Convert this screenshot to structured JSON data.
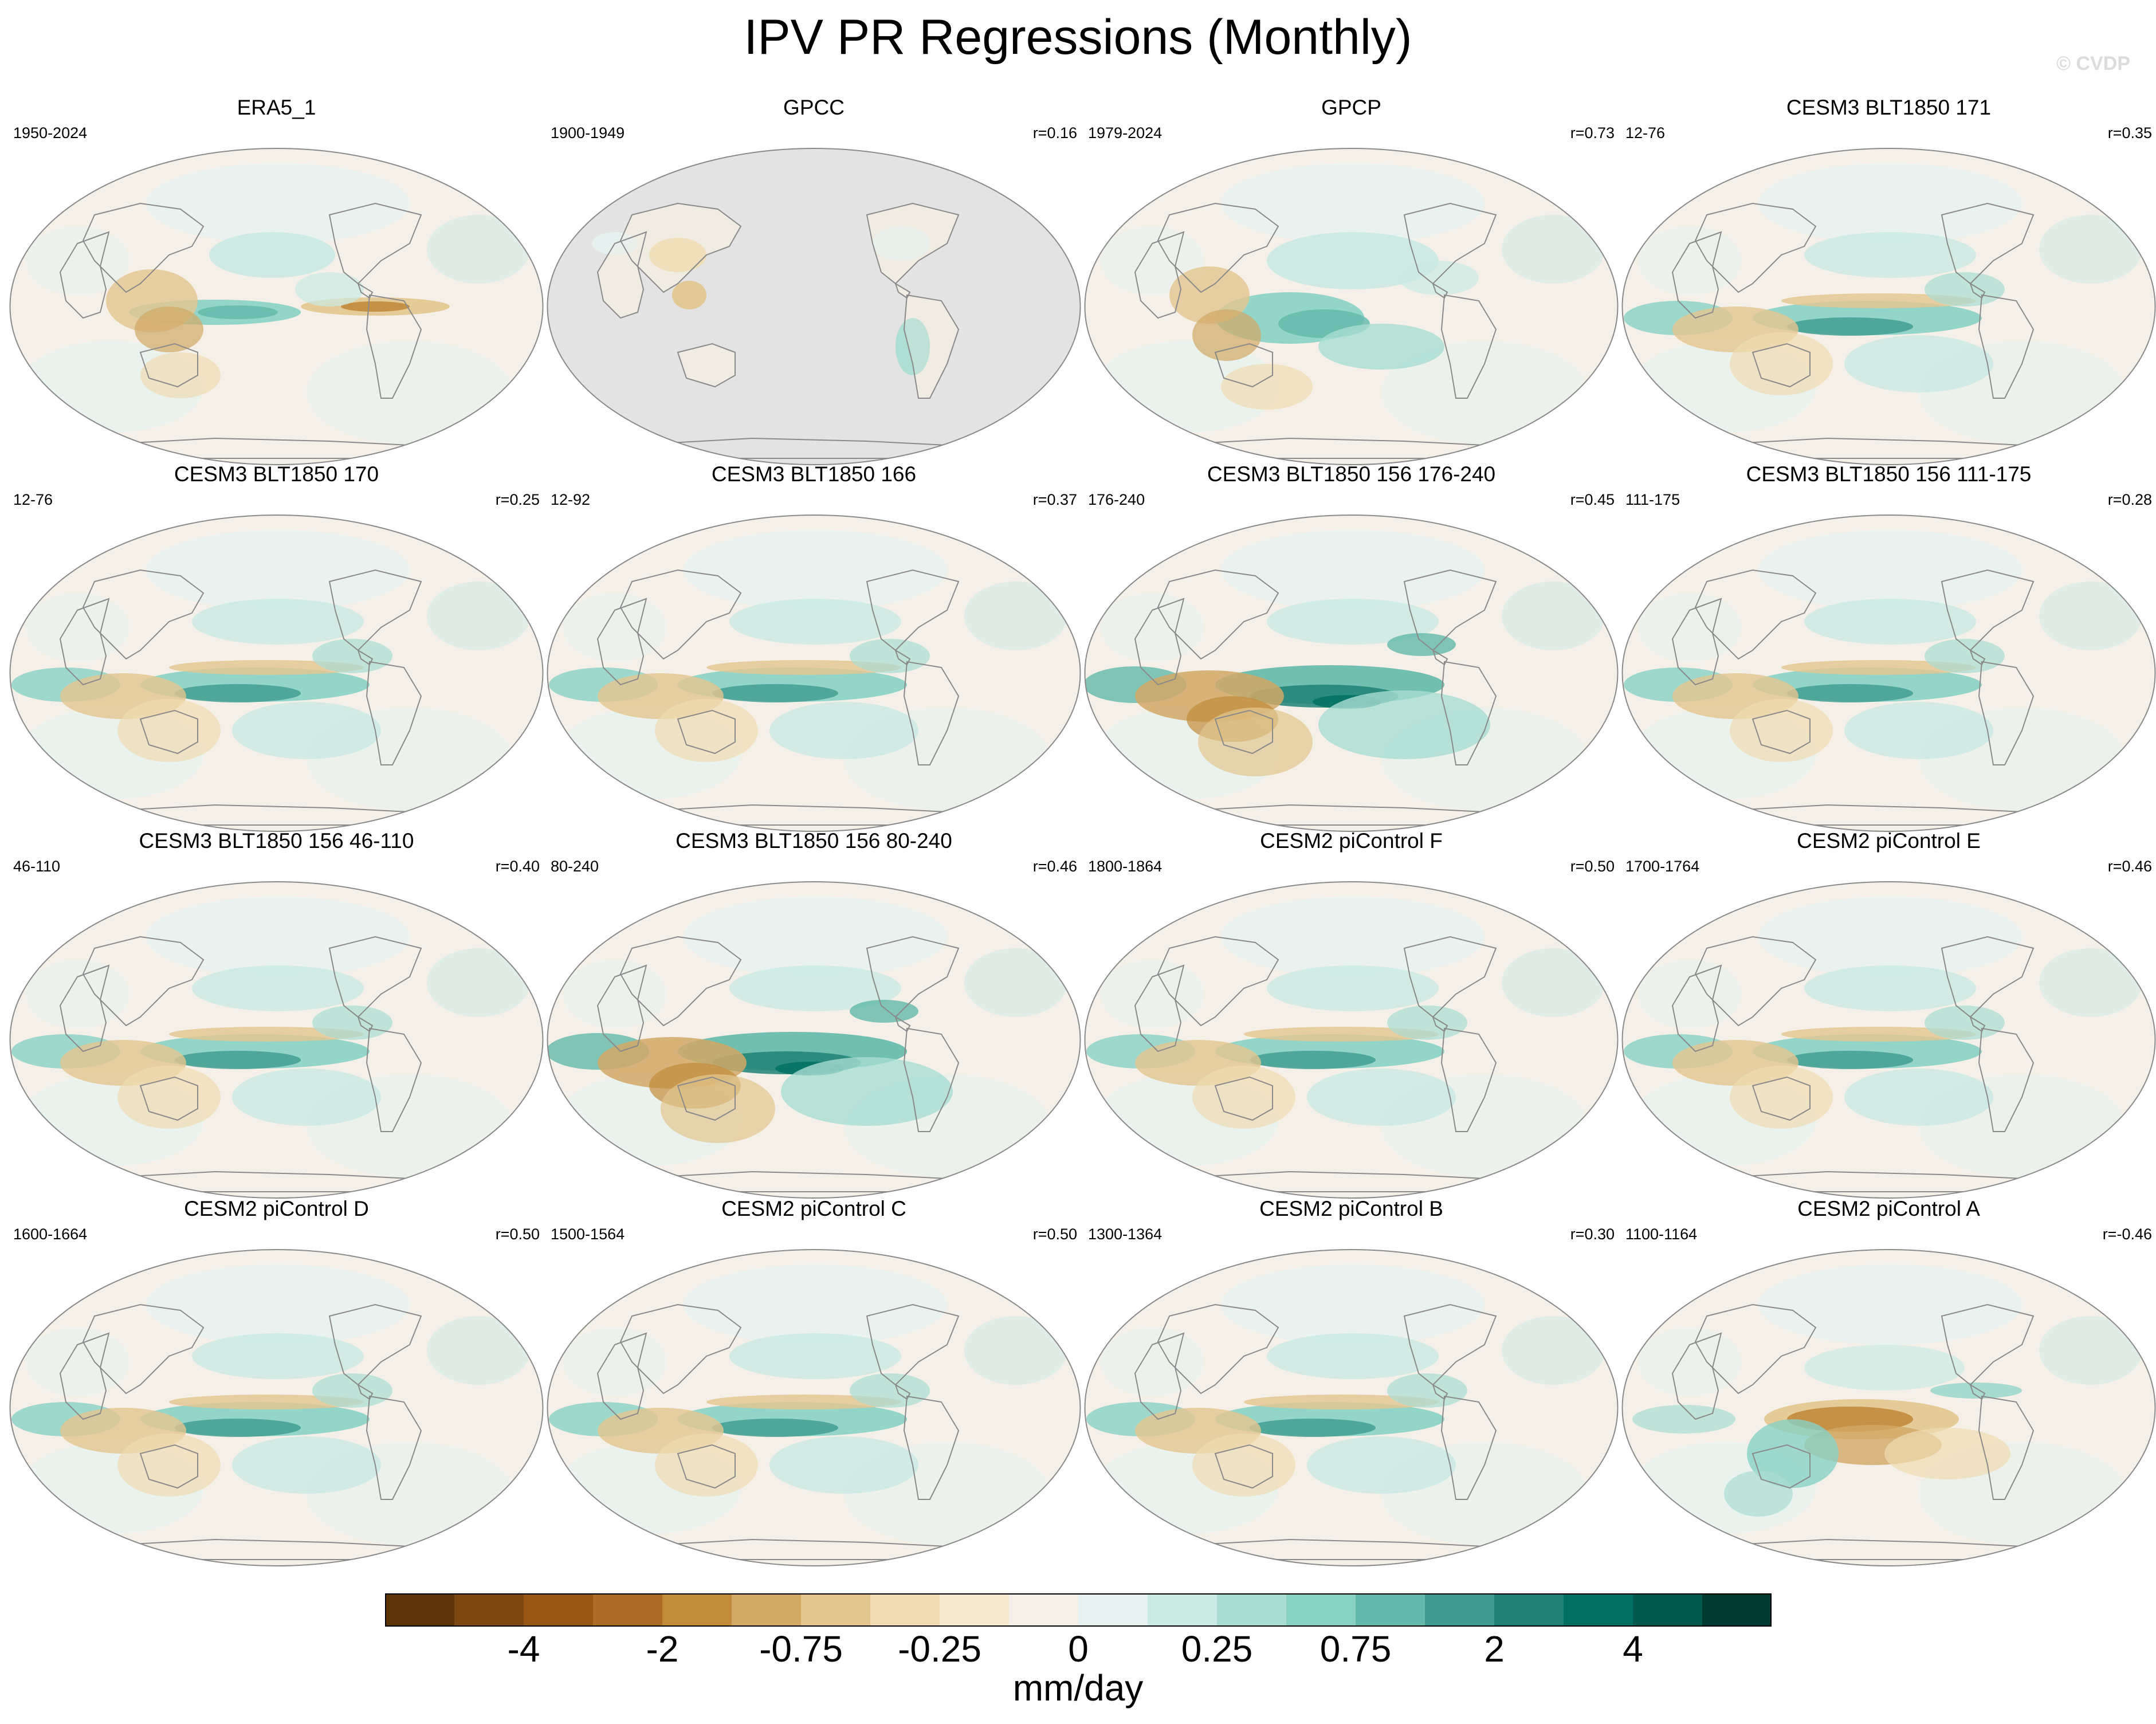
{
  "title": "IPV PR Regressions (Monthly)",
  "watermark": "© CVDP",
  "chart_data": {
    "type": "heatmap",
    "title": "IPV PR Regressions (Monthly)",
    "units": "mm/day",
    "colorbar": {
      "tick_labels": [
        "-4",
        "-2",
        "-0.75",
        "-0.25",
        "0",
        "0.25",
        "0.75",
        "2",
        "4"
      ],
      "colors": [
        "#5c3409",
        "#7c4710",
        "#975612",
        "#ac6c26",
        "#c28b3c",
        "#d2a865",
        "#e3c68e",
        "#efdcb2",
        "#f5e9cd",
        "#f4f0e8",
        "#e6f2ef",
        "#cbe9e3",
        "#a9ddd3",
        "#88d1c4",
        "#63b9aa",
        "#3f9b8e",
        "#1e8174",
        "#016f61",
        "#015a4c",
        "#003a30"
      ]
    },
    "panels": [
      {
        "name": "ERA5_1",
        "years": "1950-2024",
        "corr": "",
        "pattern": "obs"
      },
      {
        "name": "GPCC",
        "years": "1900-1949",
        "corr": "r=0.16",
        "pattern": "gpcc"
      },
      {
        "name": "GPCP",
        "years": "1979-2024",
        "corr": "r=0.73",
        "pattern": "obs2"
      },
      {
        "name": "CESM3 BLT1850 171",
        "years": "12-76",
        "corr": "r=0.35",
        "pattern": "model"
      },
      {
        "name": "CESM3 BLT1850 170",
        "years": "12-76",
        "corr": "r=0.25",
        "pattern": "model"
      },
      {
        "name": "CESM3 BLT1850 166",
        "years": "12-92",
        "corr": "r=0.37",
        "pattern": "model"
      },
      {
        "name": "CESM3 BLT1850 156 176-240",
        "years": "176-240",
        "corr": "r=0.45",
        "pattern": "strong"
      },
      {
        "name": "CESM3 BLT1850 156 111-175",
        "years": "111-175",
        "corr": "r=0.28",
        "pattern": "model"
      },
      {
        "name": "CESM3 BLT1850 156 46-110",
        "years": "46-110",
        "corr": "r=0.40",
        "pattern": "model"
      },
      {
        "name": "CESM3 BLT1850 156 80-240",
        "years": "80-240",
        "corr": "r=0.46",
        "pattern": "strong"
      },
      {
        "name": "CESM2 piControl F",
        "years": "1800-1864",
        "corr": "r=0.50",
        "pattern": "model"
      },
      {
        "name": "CESM2 piControl E",
        "years": "1700-1764",
        "corr": "r=0.46",
        "pattern": "model"
      },
      {
        "name": "CESM2 piControl D",
        "years": "1600-1664",
        "corr": "r=0.50",
        "pattern": "model"
      },
      {
        "name": "CESM2 piControl C",
        "years": "1500-1564",
        "corr": "r=0.50",
        "pattern": "model"
      },
      {
        "name": "CESM2 piControl B",
        "years": "1300-1364",
        "corr": "r=0.30",
        "pattern": "model"
      },
      {
        "name": "CESM2 piControl A",
        "years": "1100-1164",
        "corr": "r=-0.46",
        "pattern": "inverted"
      }
    ]
  }
}
